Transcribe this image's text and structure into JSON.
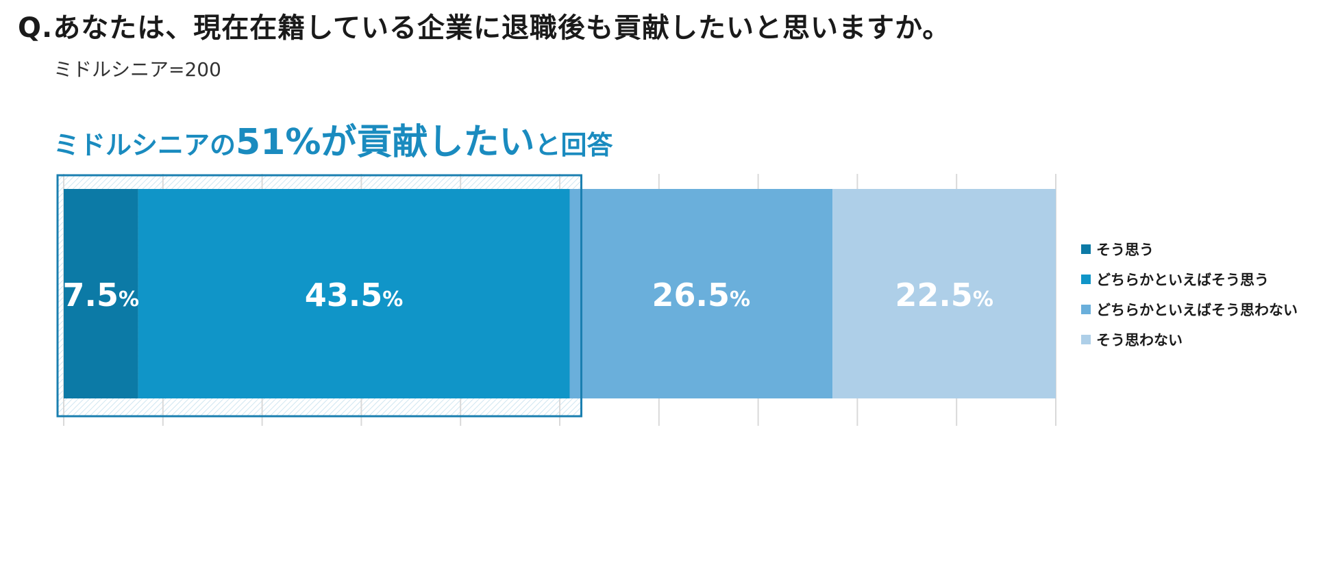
{
  "question": "Q.あなたは、現在在籍している企業に退職後も貢献したいと思いますか。",
  "sample": "ミドルシニア=200",
  "headline": {
    "prefix": "ミドルシニアの",
    "highlight": "51%が貢献したい",
    "suffix": "と回答"
  },
  "chart_data": {
    "type": "bar",
    "orientation": "horizontal",
    "stacked": true,
    "unit": "%",
    "xlim": [
      0,
      100
    ],
    "grid": true,
    "legend_position": "right",
    "series": [
      {
        "name": "そう思う",
        "value": 7.5,
        "color": "#0c7aa6"
      },
      {
        "name": "どちらかといえばそう思う",
        "value": 43.5,
        "color": "#1095c8"
      },
      {
        "name": "どちらかといえばそう思わない",
        "value": 26.5,
        "color": "#6aafdb"
      },
      {
        "name": "そう思わない",
        "value": 22.5,
        "color": "#aecfe8"
      }
    ],
    "highlight_total": 51,
    "highlight_color": "#1a7fb0"
  }
}
